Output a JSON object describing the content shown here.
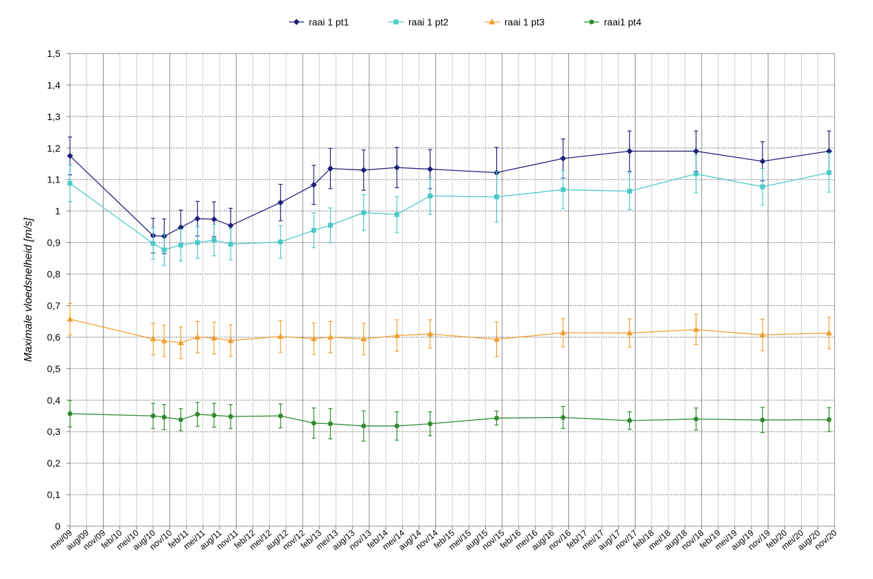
{
  "chart_data": {
    "type": "line",
    "title": "",
    "xlabel": "",
    "ylabel": "Maximale vloedsnelheid [m/s]",
    "ylim": [
      0,
      1.5
    ],
    "y_ticks": [
      "0",
      "0,1",
      "0,2",
      "0,3",
      "0,4",
      "0,5",
      "0,6",
      "0,7",
      "0,8",
      "0,9",
      "1",
      "1,1",
      "1,2",
      "1,3",
      "1,4",
      "1,5"
    ],
    "x_ticks": [
      "mei/09",
      "aug/09",
      "nov/09",
      "feb/10",
      "mei/10",
      "aug/10",
      "nov/10",
      "feb/11",
      "mei/11",
      "aug/11",
      "nov/11",
      "feb/12",
      "mei/12",
      "aug/12",
      "nov/12",
      "feb/13",
      "mei/13",
      "aug/13",
      "nov/13",
      "feb/14",
      "mei/14",
      "aug/14",
      "nov/14",
      "feb/15",
      "mei/15",
      "aug/15",
      "nov/15",
      "feb/16",
      "mei/16",
      "aug/16",
      "nov/16",
      "feb/17",
      "mei/17",
      "aug/17",
      "nov/17",
      "feb/18",
      "mei/18",
      "aug/18",
      "nov/18",
      "feb/19",
      "mei/19",
      "aug/19",
      "nov/19",
      "feb/20",
      "mei/20",
      "aug/20",
      "nov/20"
    ],
    "grid": true,
    "legend_position": "top",
    "series": [
      {
        "name": "raai 1 pt1",
        "color": "#1f1f7a",
        "marker": "diamond",
        "x": [
          "2009-05-01",
          "2010-08-01",
          "2010-10-01",
          "2011-01-01",
          "2011-04-01",
          "2011-07-01",
          "2011-10-01",
          "2012-07-01",
          "2013-01-01",
          "2013-04-01",
          "2013-10-01",
          "2014-04-01",
          "2014-10-01",
          "2015-10-01",
          "2016-10-01",
          "2017-10-01",
          "2018-10-01",
          "2019-10-01",
          "2020-10-01"
        ],
        "y": [
          1.175,
          0.922,
          0.92,
          0.948,
          0.976,
          0.974,
          0.954,
          1.027,
          1.083,
          1.135,
          1.13,
          1.138,
          1.133,
          1.122,
          1.167,
          1.19,
          1.19,
          1.158,
          1.19
        ],
        "error": [
          0.06,
          0.055,
          0.055,
          0.055,
          0.055,
          0.055,
          0.055,
          0.058,
          0.062,
          0.064,
          0.064,
          0.064,
          0.062,
          0.08,
          0.062,
          0.064,
          0.064,
          0.062,
          0.064
        ]
      },
      {
        "name": "raai 1 pt2",
        "color": "#4dc8c8",
        "marker": "square",
        "x": [
          "2009-05-01",
          "2010-08-01",
          "2010-10-01",
          "2011-01-01",
          "2011-04-01",
          "2011-07-01",
          "2011-10-01",
          "2012-07-01",
          "2013-01-01",
          "2013-04-01",
          "2013-10-01",
          "2014-04-01",
          "2014-10-01",
          "2015-10-01",
          "2016-10-01",
          "2017-10-01",
          "2018-10-01",
          "2019-10-01",
          "2020-10-01"
        ],
        "y": [
          1.088,
          0.897,
          0.877,
          0.892,
          0.9,
          0.908,
          0.895,
          0.902,
          0.939,
          0.955,
          0.995,
          0.989,
          1.048,
          1.045,
          1.068,
          1.063,
          1.118,
          1.077,
          1.122
        ],
        "error": [
          0.058,
          0.05,
          0.05,
          0.05,
          0.05,
          0.05,
          0.05,
          0.052,
          0.055,
          0.055,
          0.057,
          0.057,
          0.058,
          0.08,
          0.06,
          0.058,
          0.06,
          0.058,
          0.062
        ]
      },
      {
        "name": "raai 1 pt3",
        "color": "#f0a030",
        "marker": "triangle",
        "x": [
          "2009-05-01",
          "2010-08-01",
          "2010-10-01",
          "2011-01-01",
          "2011-04-01",
          "2011-07-01",
          "2011-10-01",
          "2012-07-01",
          "2013-01-01",
          "2013-04-01",
          "2013-10-01",
          "2014-04-01",
          "2014-10-01",
          "2015-10-01",
          "2016-10-01",
          "2017-10-01",
          "2018-10-01",
          "2019-10-01",
          "2020-10-01"
        ],
        "y": [
          0.657,
          0.594,
          0.588,
          0.582,
          0.6,
          0.597,
          0.589,
          0.602,
          0.595,
          0.6,
          0.594,
          0.605,
          0.61,
          0.593,
          0.614,
          0.613,
          0.624,
          0.607,
          0.613
        ],
        "error": [
          0.05,
          0.05,
          0.05,
          0.05,
          0.05,
          0.05,
          0.05,
          0.05,
          0.05,
          0.05,
          0.05,
          0.05,
          0.045,
          0.055,
          0.045,
          0.045,
          0.048,
          0.05,
          0.05
        ]
      },
      {
        "name": "raai1 pt4",
        "color": "#2e8b2e",
        "marker": "circle",
        "x": [
          "2009-05-01",
          "2010-08-01",
          "2010-10-01",
          "2011-01-01",
          "2011-04-01",
          "2011-07-01",
          "2011-10-01",
          "2012-07-01",
          "2013-01-01",
          "2013-04-01",
          "2013-10-01",
          "2014-04-01",
          "2014-10-01",
          "2015-10-01",
          "2016-10-01",
          "2017-10-01",
          "2018-10-01",
          "2019-10-01",
          "2020-10-01"
        ],
        "y": [
          0.357,
          0.35,
          0.346,
          0.338,
          0.355,
          0.352,
          0.348,
          0.35,
          0.327,
          0.325,
          0.318,
          0.318,
          0.325,
          0.343,
          0.345,
          0.335,
          0.34,
          0.337,
          0.338
        ],
        "error": [
          0.042,
          0.04,
          0.04,
          0.035,
          0.038,
          0.038,
          0.038,
          0.038,
          0.048,
          0.048,
          0.048,
          0.045,
          0.038,
          0.022,
          0.035,
          0.028,
          0.035,
          0.04,
          0.038
        ]
      }
    ]
  }
}
